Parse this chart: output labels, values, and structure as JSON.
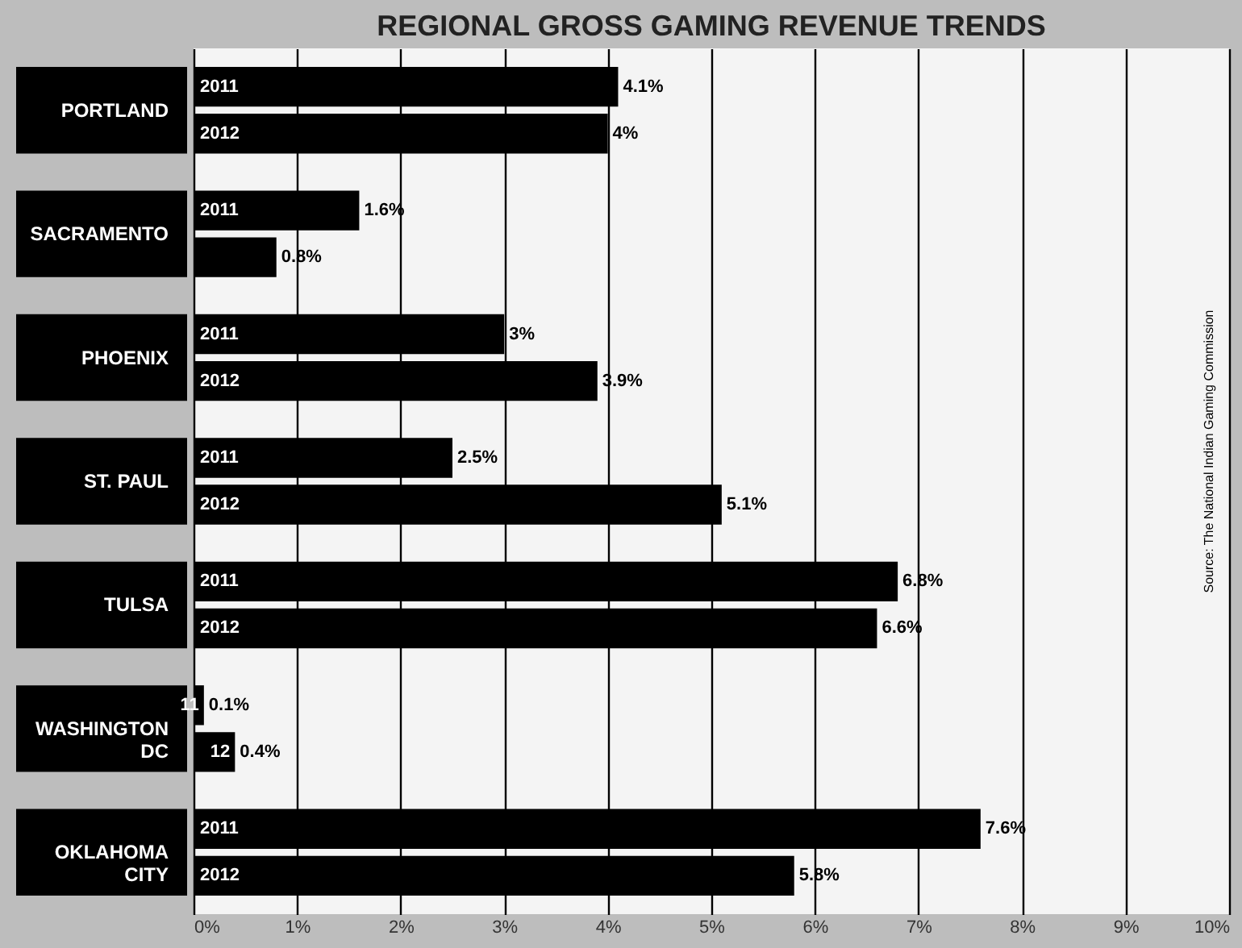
{
  "chart_data": {
    "type": "bar",
    "orientation": "horizontal",
    "title": "REGIONAL GROSS GAMING REVENUE TRENDS",
    "categories": [
      "PORTLAND",
      "SACRAMENTO",
      "PHOENIX",
      "ST. PAUL",
      "TULSA",
      "WASHINGTON\nDC",
      "OKLAHOMA\nCITY"
    ],
    "series": [
      {
        "name": "2011",
        "color": "#000000",
        "values": [
          4.1,
          1.6,
          3,
          2.5,
          6.8,
          0.1,
          7.6
        ],
        "value_labels": [
          "4.1%",
          "1.6%",
          "3%",
          "2.5%",
          "6.8%",
          "0.1%",
          "7.6%"
        ]
      },
      {
        "name": "2012",
        "color": "#000000",
        "values": [
          4,
          0.8,
          3.9,
          5.1,
          6.6,
          0.4,
          5.8
        ],
        "value_labels": [
          "4%",
          "0.8%",
          "3.9%",
          "5.1%",
          "6.6%",
          "0.4%",
          "5.8%"
        ]
      }
    ],
    "xlim": [
      0,
      10
    ],
    "xticks": [
      {
        "value": 0,
        "label": "0%"
      },
      {
        "value": 1,
        "label": "1%"
      },
      {
        "value": 2,
        "label": "2%"
      },
      {
        "value": 3,
        "label": "3%"
      },
      {
        "value": 4,
        "label": "4%"
      },
      {
        "value": 5,
        "label": "5%"
      },
      {
        "value": 6,
        "label": "6%"
      },
      {
        "value": 7,
        "label": "7%"
      },
      {
        "value": 8,
        "label": "8%"
      },
      {
        "value": 9,
        "label": "9%"
      },
      {
        "value": 10,
        "label": "10%"
      }
    ],
    "grid": "x",
    "legend": false,
    "annotations": [
      {
        "text": "11",
        "x": 0.1,
        "y": "WASHINGTON\nDC"
      },
      {
        "text": "12",
        "x": 0.4,
        "y": "WASHINGTON\nDC"
      },
      "Source: The National Indian Gaming Commission"
    ]
  }
}
